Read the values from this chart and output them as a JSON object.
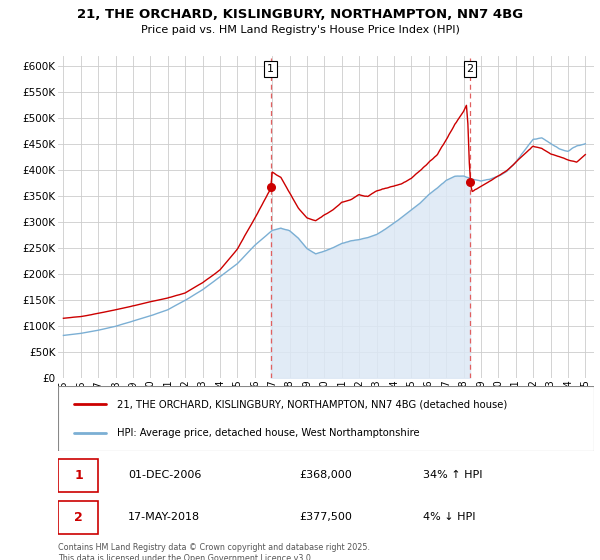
{
  "title": "21, THE ORCHARD, KISLINGBURY, NORTHAMPTON, NN7 4BG",
  "subtitle": "Price paid vs. HM Land Registry's House Price Index (HPI)",
  "legend_entry1": "21, THE ORCHARD, KISLINGBURY, NORTHAMPTON, NN7 4BG (detached house)",
  "legend_entry2": "HPI: Average price, detached house, West Northamptonshire",
  "annotation1_label": "1",
  "annotation1_date": "01-DEC-2006",
  "annotation1_price": "£368,000",
  "annotation1_hpi": "34% ↑ HPI",
  "annotation2_label": "2",
  "annotation2_date": "17-MAY-2018",
  "annotation2_price": "£377,500",
  "annotation2_hpi": "4% ↓ HPI",
  "footer": "Contains HM Land Registry data © Crown copyright and database right 2025.\nThis data is licensed under the Open Government Licence v3.0.",
  "red_color": "#cc0000",
  "blue_color": "#7bafd4",
  "blue_fill_color": "#dce8f5",
  "vline_color": "#e06060",
  "background_color": "#ffffff",
  "grid_color": "#cccccc",
  "ylim": [
    0,
    620000
  ],
  "yticks": [
    0,
    50000,
    100000,
    150000,
    200000,
    250000,
    300000,
    350000,
    400000,
    450000,
    500000,
    550000,
    600000
  ],
  "ytick_labels": [
    "£0",
    "£50K",
    "£100K",
    "£150K",
    "£200K",
    "£250K",
    "£300K",
    "£350K",
    "£400K",
    "£450K",
    "£500K",
    "£550K",
    "£600K"
  ],
  "xlim_start": 1994.7,
  "xlim_end": 2025.5,
  "xticks": [
    1995,
    1996,
    1997,
    1998,
    1999,
    2000,
    2001,
    2002,
    2003,
    2004,
    2005,
    2006,
    2007,
    2008,
    2009,
    2010,
    2011,
    2012,
    2013,
    2014,
    2015,
    2016,
    2017,
    2018,
    2019,
    2020,
    2021,
    2022,
    2023,
    2024,
    2025
  ],
  "vline1_x": 2006.917,
  "vline2_x": 2018.375,
  "sale1_x": 2006.917,
  "sale1_y": 368000,
  "sale2_x": 2018.375,
  "sale2_y": 377500
}
